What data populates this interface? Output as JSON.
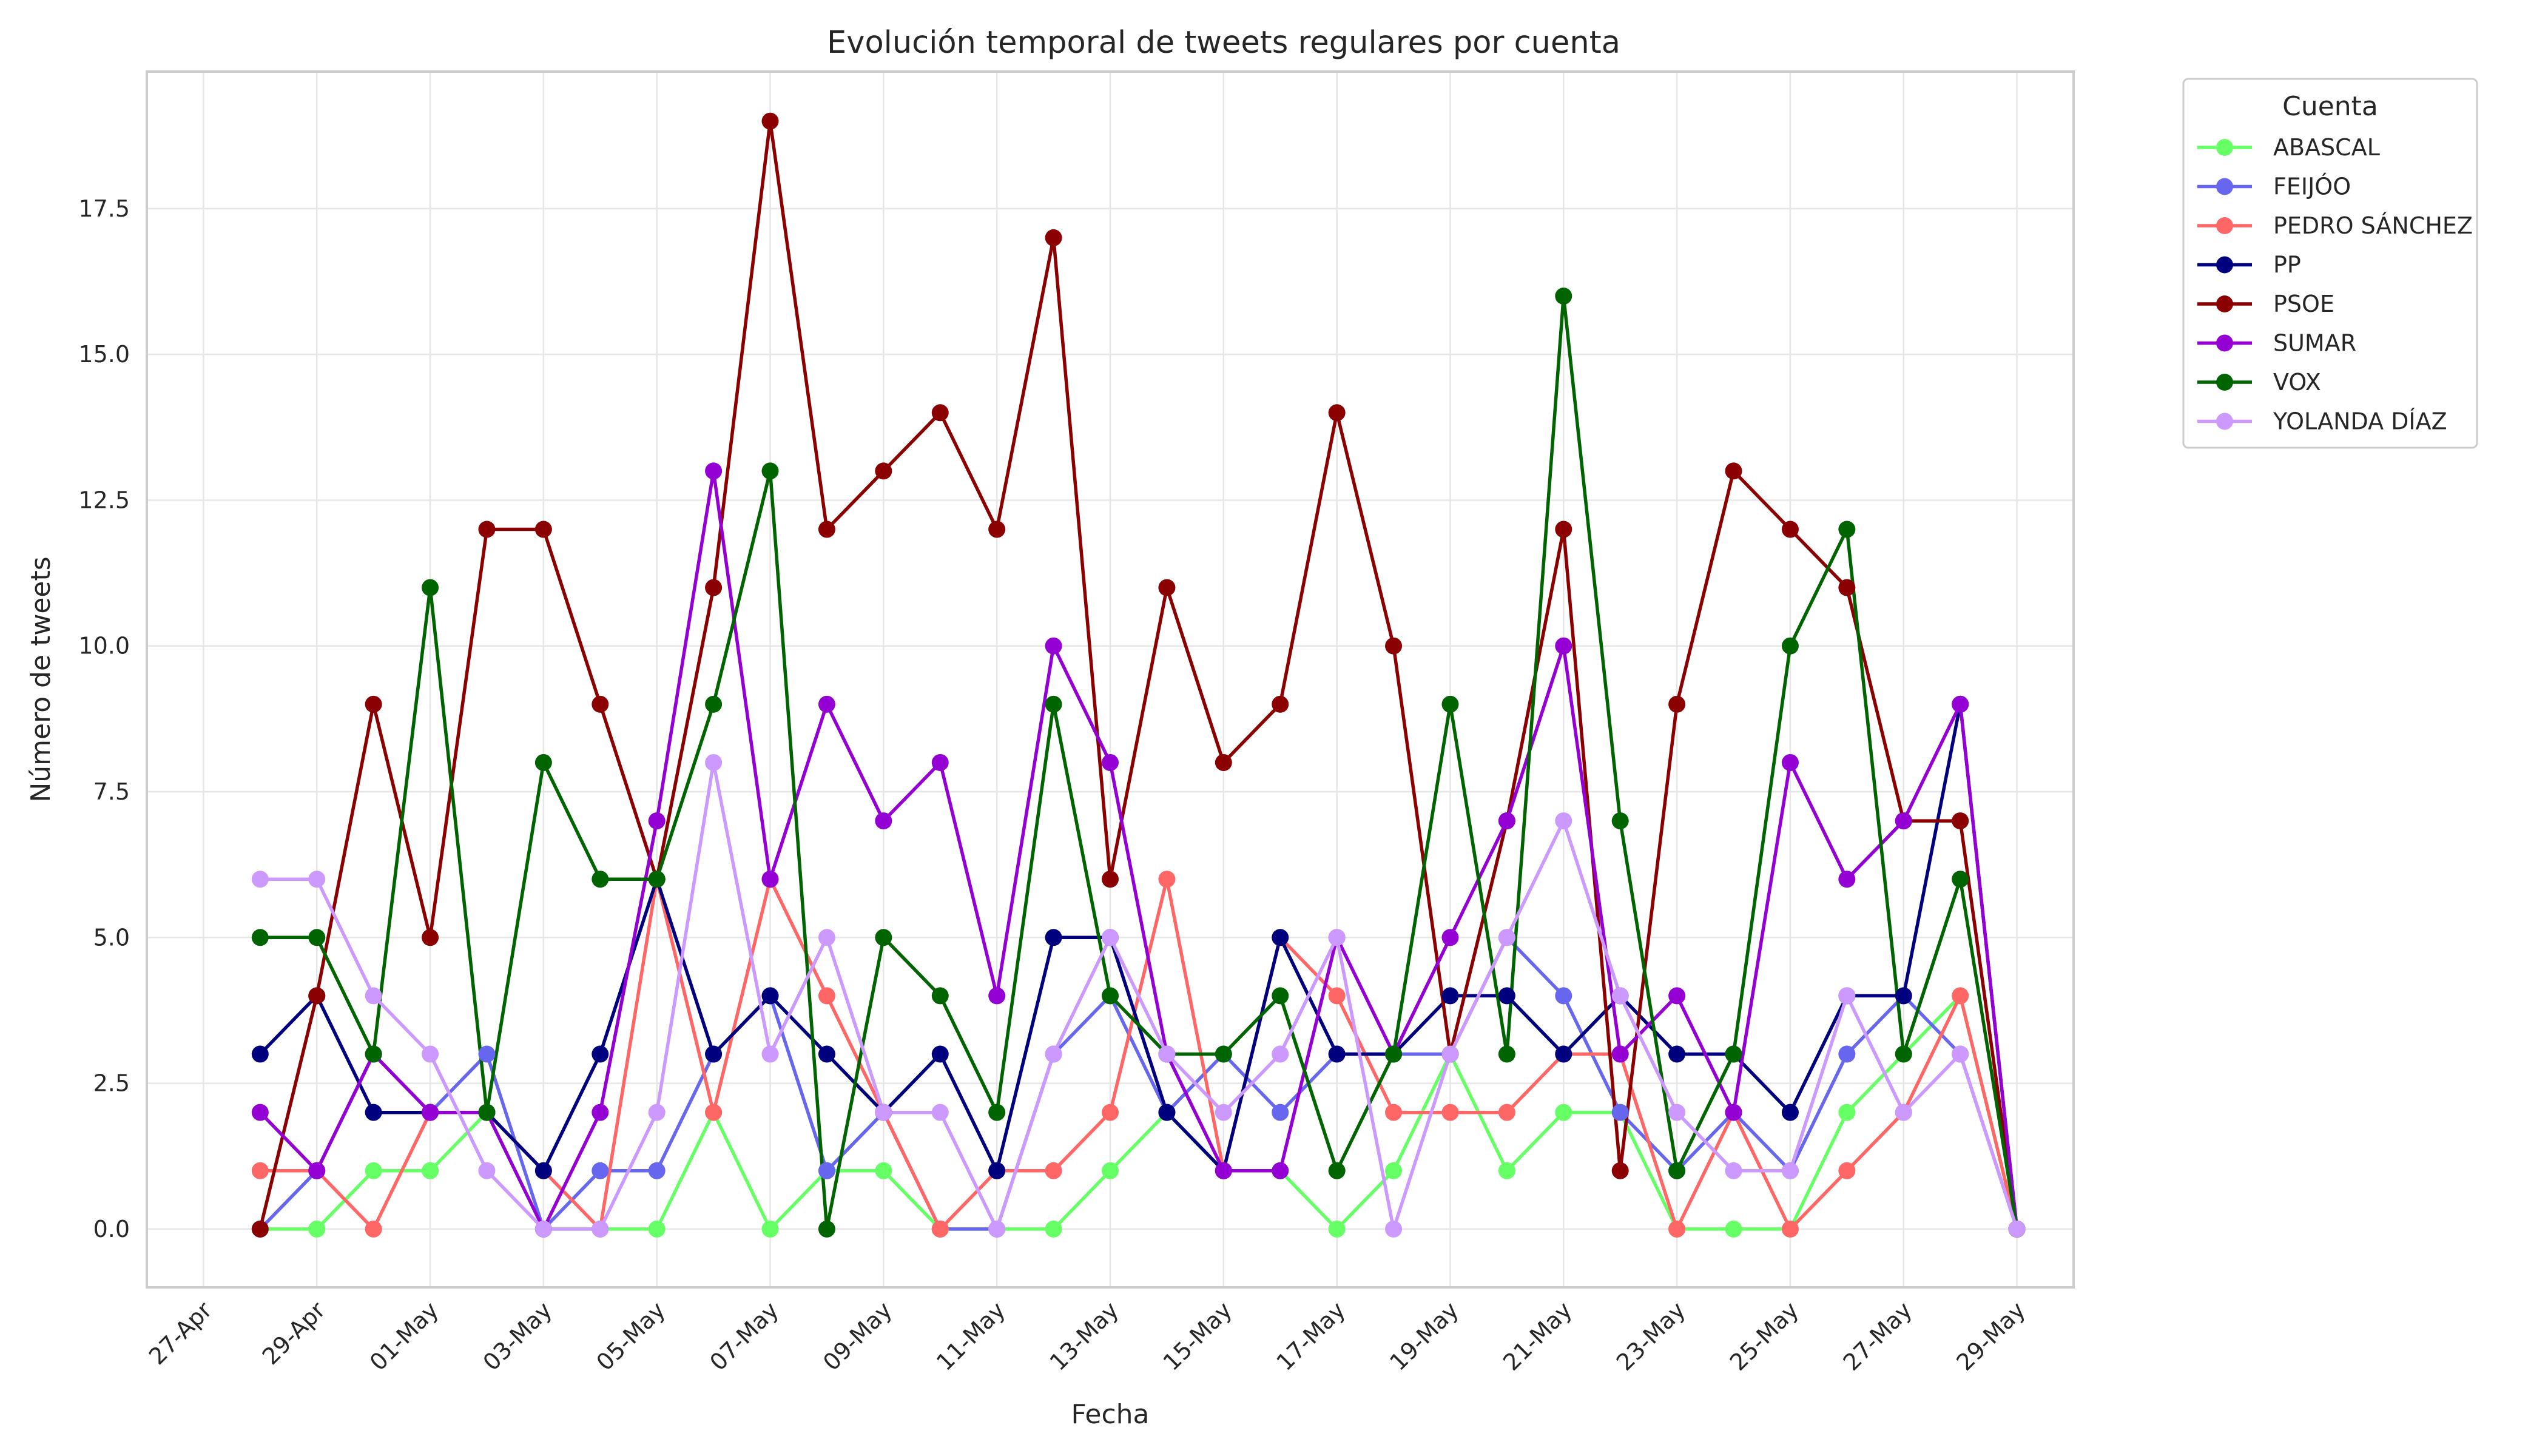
{
  "chart_data": {
    "type": "line",
    "title": "Evolución temporal de tweets regulares por cuenta",
    "xlabel": "Fecha",
    "ylabel": "Número de tweets",
    "x": [
      "28-Apr",
      "29-Apr",
      "30-Apr",
      "01-May",
      "02-May",
      "03-May",
      "04-May",
      "05-May",
      "06-May",
      "07-May",
      "08-May",
      "09-May",
      "10-May",
      "11-May",
      "12-May",
      "13-May",
      "14-May",
      "15-May",
      "16-May",
      "17-May",
      "18-May",
      "19-May",
      "20-May",
      "21-May",
      "22-May",
      "23-May",
      "24-May",
      "25-May",
      "26-May",
      "27-May",
      "28-May",
      "29-May"
    ],
    "xticks": [
      "27-Apr",
      "29-Apr",
      "01-May",
      "03-May",
      "05-May",
      "07-May",
      "09-May",
      "11-May",
      "13-May",
      "15-May",
      "17-May",
      "19-May",
      "21-May",
      "23-May",
      "25-May",
      "27-May",
      "29-May"
    ],
    "xlim": [
      "26-Apr",
      "30-May"
    ],
    "ylim": [
      -1.0,
      19.85
    ],
    "yticks": [
      "0.0",
      "2.5",
      "5.0",
      "7.5",
      "10.0",
      "12.5",
      "15.0",
      "17.5"
    ],
    "grid": true,
    "legend_title": "Cuenta",
    "legend_position": "outside-top-right",
    "series": [
      {
        "name": "ABASCAL",
        "color": "#66ff66",
        "values": [
          0,
          0,
          1,
          1,
          2,
          0,
          0,
          0,
          2,
          0,
          1,
          1,
          0,
          0,
          0,
          1,
          2,
          1,
          1,
          0,
          1,
          3,
          1,
          2,
          2,
          0,
          0,
          0,
          2,
          3,
          4,
          0
        ]
      },
      {
        "name": "FEIJÓO",
        "color": "#6666ee",
        "values": [
          0,
          1,
          3,
          2,
          3,
          0,
          1,
          1,
          3,
          4,
          1,
          2,
          0,
          0,
          3,
          4,
          2,
          3,
          2,
          3,
          3,
          3,
          5,
          4,
          2,
          1,
          2,
          1,
          3,
          4,
          3,
          0
        ]
      },
      {
        "name": "PEDRO SÁNCHEZ",
        "color": "#ff6666",
        "values": [
          1,
          1,
          0,
          2,
          2,
          1,
          0,
          6,
          2,
          6,
          4,
          2,
          0,
          1,
          1,
          2,
          6,
          1,
          5,
          4,
          2,
          2,
          2,
          3,
          3,
          0,
          2,
          0,
          1,
          2,
          4,
          0
        ]
      },
      {
        "name": "PP",
        "color": "#00007f",
        "values": [
          3,
          4,
          2,
          2,
          2,
          1,
          3,
          6,
          3,
          4,
          3,
          2,
          3,
          1,
          5,
          5,
          2,
          1,
          5,
          3,
          3,
          4,
          4,
          3,
          4,
          3,
          3,
          2,
          4,
          4,
          9,
          0
        ]
      },
      {
        "name": "PSOE",
        "color": "#8b0000",
        "values": [
          0,
          4,
          9,
          5,
          12,
          12,
          9,
          6,
          11,
          19,
          12,
          13,
          14,
          12,
          17,
          6,
          11,
          8,
          9,
          14,
          10,
          3,
          7,
          12,
          1,
          9,
          13,
          12,
          11,
          7,
          7,
          0
        ]
      },
      {
        "name": "SUMAR",
        "color": "#9400d3",
        "values": [
          2,
          1,
          3,
          2,
          2,
          0,
          2,
          7,
          13,
          6,
          9,
          7,
          8,
          4,
          10,
          8,
          3,
          1,
          1,
          5,
          3,
          5,
          7,
          10,
          3,
          4,
          2,
          8,
          6,
          7,
          9,
          0
        ]
      },
      {
        "name": "VOX",
        "color": "#006400",
        "values": [
          5,
          5,
          3,
          11,
          2,
          8,
          6,
          6,
          9,
          13,
          0,
          5,
          4,
          2,
          9,
          4,
          3,
          3,
          4,
          1,
          3,
          9,
          3,
          16,
          7,
          1,
          3,
          10,
          12,
          3,
          6,
          0
        ]
      },
      {
        "name": "YOLANDA DÍAZ",
        "color": "#cc99ff",
        "values": [
          6,
          6,
          4,
          3,
          1,
          0,
          0,
          2,
          8,
          3,
          5,
          2,
          2,
          0,
          3,
          5,
          3,
          2,
          3,
          5,
          0,
          3,
          5,
          7,
          4,
          2,
          1,
          1,
          4,
          2,
          3,
          0
        ]
      }
    ]
  }
}
